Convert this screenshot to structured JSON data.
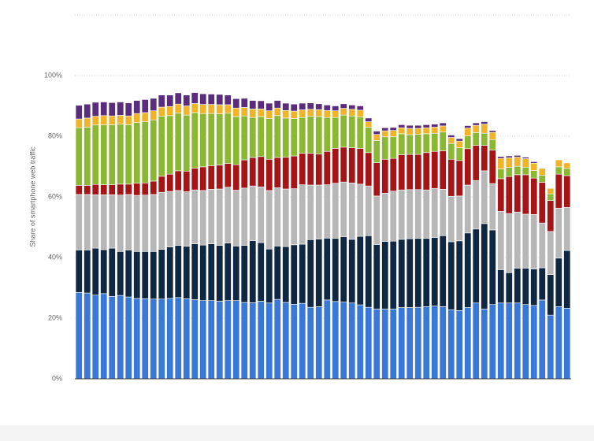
{
  "chart_data": {
    "type": "stacked_bar",
    "y_label": "Share of smartphone web traffic",
    "categories": [
      null,
      null,
      null,
      null,
      null,
      null,
      null,
      null,
      null,
      null,
      null,
      null,
      null,
      null,
      null,
      null,
      null,
      null,
      null,
      null,
      null,
      null,
      null,
      null,
      null,
      null,
      null,
      null,
      null,
      null,
      null,
      null,
      null,
      null,
      null,
      null,
      null,
      null,
      null,
      null,
      null,
      null,
      null,
      null,
      null,
      null,
      null,
      null,
      null,
      null,
      null,
      null,
      null,
      null,
      null,
      null,
      null,
      null,
      null,
      null
    ],
    "series": [
      {
        "color": "#3a78d8",
        "values": [
          28.5,
          28.3,
          27.6,
          28.1,
          27.2,
          27.5,
          27.0,
          26.5,
          26.4,
          26.3,
          26.3,
          26.5,
          26.8,
          26.4,
          26.1,
          25.8,
          25.8,
          25.6,
          25.8,
          25.8,
          25.2,
          25.1,
          25.6,
          25,
          26.2,
          25.2,
          24.6,
          24.9,
          23.6,
          23.8,
          26,
          25.5,
          25.3,
          25,
          24.4,
          23.6,
          23,
          23,
          23,
          23.5,
          23.5,
          23.6,
          23.8,
          24,
          23.8,
          22.8,
          22.5,
          23.5,
          25,
          23,
          24.5,
          25,
          25,
          25,
          24.5,
          24.2,
          26,
          21,
          23.8,
          23.3
        ]
      },
      {
        "color": "#0f2740",
        "values": [
          14,
          14.2,
          15.5,
          14.5,
          15.9,
          14.5,
          15.5,
          15.5,
          15.6,
          15.7,
          16.4,
          17,
          17.2,
          17.3,
          18.4,
          18.3,
          18.7,
          18.4,
          19,
          18,
          18.8,
          20.5,
          19.3,
          17.8,
          17.6,
          18.4,
          19.6,
          19.5,
          22.3,
          22.3,
          20.4,
          20.8,
          21.6,
          21,
          22.6,
          23.6,
          21.3,
          22.3,
          22.4,
          22.5,
          22.7,
          22.7,
          22.5,
          22.6,
          23.4,
          22.4,
          23,
          24.6,
          24.4,
          28.2,
          24.6,
          11,
          10,
          11.5,
          12,
          12,
          10.6,
          13.4,
          16,
          19
        ]
      },
      {
        "color": "#b7b7b7",
        "values": [
          18.3,
          18.3,
          17.6,
          18.1,
          17.6,
          18.6,
          18.3,
          18.5,
          18.6,
          18.8,
          18.8,
          18.3,
          18.1,
          18,
          17.8,
          18,
          18,
          18.6,
          18.4,
          18.4,
          18.9,
          18,
          18.4,
          19.3,
          19.2,
          19,
          18.5,
          19.6,
          18,
          17.8,
          17.6,
          18.2,
          18,
          18.6,
          17.2,
          16.4,
          16,
          15.9,
          16.5,
          16.3,
          16.2,
          16.1,
          16,
          16.2,
          15.3,
          15,
          14.8,
          15.8,
          16,
          17.4,
          15.3,
          19.2,
          19.5,
          18.5,
          17.8,
          18,
          14.8,
          14.2,
          16.5,
          14.2
        ]
      },
      {
        "color": "#a51417",
        "values": [
          3,
          3,
          3.4,
          3.3,
          3.3,
          3.6,
          3.4,
          4,
          4,
          4.4,
          5.3,
          5.7,
          6.5,
          6.8,
          7.2,
          7.8,
          7.8,
          7.9,
          7.8,
          8.4,
          9.3,
          9.4,
          10,
          10.3,
          10,
          10.5,
          10.8,
          10.4,
          10.5,
          10.2,
          11,
          11.5,
          11.5,
          11.6,
          11.8,
          11,
          11,
          11.2,
          10.8,
          11.6,
          11.6,
          11.6,
          12.3,
          12.2,
          12.7,
          12.2,
          11.7,
          12,
          11.6,
          8.4,
          11,
          10.8,
          12.2,
          12.3,
          13,
          12,
          13.4,
          10.2,
          11.2,
          10.5
        ]
      },
      {
        "color": "#8ab833",
        "values": [
          19,
          19.2,
          19.6,
          19.8,
          19.8,
          19.8,
          19.6,
          20,
          20.2,
          20.2,
          19.8,
          19.3,
          19,
          18.5,
          18.3,
          17.6,
          17.2,
          16.9,
          16.6,
          15.9,
          14.5,
          13.2,
          13.2,
          13.5,
          13.8,
          12.9,
          12.3,
          11.8,
          12.2,
          12.4,
          11.2,
          10.2,
          10.6,
          10.5,
          10.4,
          8.4,
          7.3,
          7.4,
          7.2,
          6.9,
          6.5,
          6.6,
          6.2,
          6,
          6.2,
          5.2,
          4.2,
          4.2,
          4.2,
          4,
          3.5,
          3.2,
          3,
          2.8,
          2.5,
          2.5,
          2.4,
          2.2,
          2.4,
          2.4
        ]
      },
      {
        "color": "#f0b42b",
        "values": [
          2.9,
          3,
          2.9,
          3,
          2.9,
          2.9,
          2.9,
          3,
          3,
          3,
          3,
          3,
          3,
          3,
          3,
          3,
          3,
          3,
          2.8,
          2.8,
          2.8,
          2.8,
          2.5,
          2.5,
          2.5,
          2.5,
          2.5,
          2.5,
          2.3,
          2.3,
          2.3,
          2.2,
          2.2,
          2.2,
          2.2,
          1.8,
          2,
          2,
          2,
          2,
          2.1,
          2,
          2,
          2,
          2,
          2,
          2.2,
          2.6,
          2.4,
          3,
          2.4,
          3.5,
          3.2,
          3,
          2.8,
          2.4,
          2.2,
          1.8,
          2.3,
          1.8
        ]
      },
      {
        "color": "#5a2d7c",
        "values": [
          4.5,
          4.6,
          4.6,
          4.5,
          4.4,
          4.4,
          4.3,
          4.3,
          4.3,
          4.1,
          4,
          3.8,
          3.7,
          3.6,
          3.6,
          3.5,
          3.4,
          3.4,
          3.2,
          3.1,
          3,
          2.8,
          2.7,
          2.5,
          2.5,
          2.4,
          2.3,
          2.2,
          2.1,
          1.9,
          1.8,
          1.6,
          1.5,
          1.4,
          1.4,
          1.2,
          1.1,
          1,
          1,
          1,
          1,
          1,
          1,
          1,
          1,
          0.8,
          0.8,
          0.8,
          0.8,
          0.8,
          0.6,
          0.6,
          0.6,
          0.6,
          0.5,
          0.5,
          0,
          0,
          0,
          0
        ]
      }
    ],
    "ylim": [
      0,
      120
    ],
    "yticks": [
      {
        "value": 0,
        "label": "0%"
      },
      {
        "value": 20,
        "label": "20%"
      },
      {
        "value": 40,
        "label": "40%"
      },
      {
        "value": 60,
        "label": "60%"
      },
      {
        "value": 80,
        "label": "80%"
      },
      {
        "value": 100,
        "label": "100%"
      }
    ],
    "grid": true
  }
}
